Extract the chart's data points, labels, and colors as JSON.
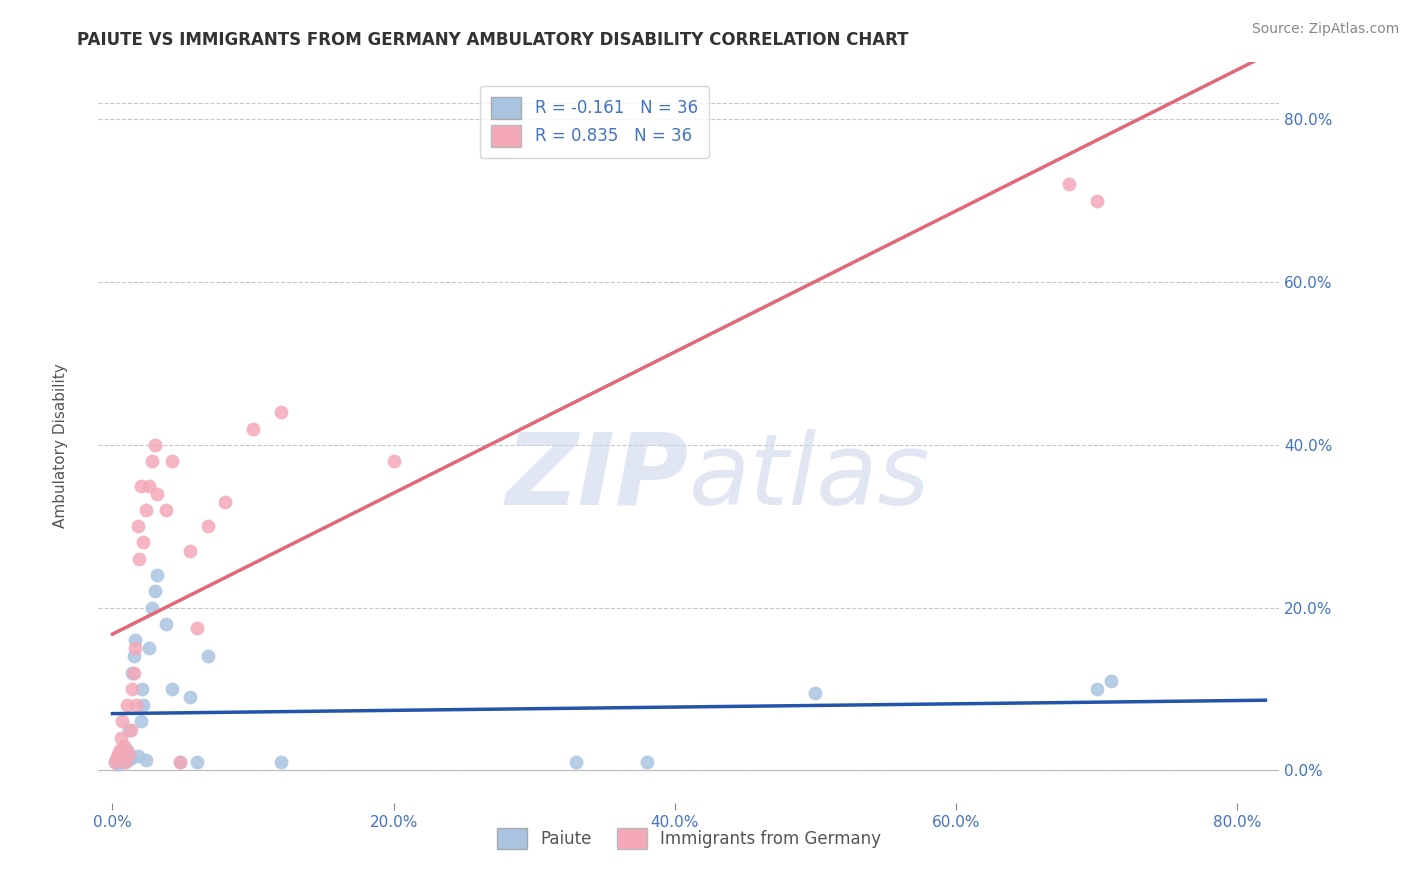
{
  "title": "PAIUTE VS IMMIGRANTS FROM GERMANY AMBULATORY DISABILITY CORRELATION CHART",
  "source": "Source: ZipAtlas.com",
  "ylabel": "Ambulatory Disability",
  "xlim": [
    -0.01,
    0.83
  ],
  "ylim": [
    -0.04,
    0.87
  ],
  "xticks": [
    0.0,
    0.2,
    0.4,
    0.6,
    0.8
  ],
  "yticks": [
    0.0,
    0.2,
    0.4,
    0.6,
    0.8
  ],
  "xtick_labels": [
    "0.0%",
    "20.0%",
    "40.0%",
    "60.0%",
    "80.0%"
  ],
  "ytick_labels": [
    "0.0%",
    "20.0%",
    "40.0%",
    "60.0%",
    "80.0%"
  ],
  "legend_labels": [
    "Paiute",
    "Immigrants from Germany"
  ],
  "paiute_R": -0.161,
  "paiute_N": 36,
  "germany_R": 0.835,
  "germany_N": 36,
  "paiute_color": "#a8c4e0",
  "germany_color": "#f4a8b8",
  "paiute_line_color": "#2255aa",
  "germany_line_color": "#e06878",
  "paiute_x": [
    0.002,
    0.003,
    0.004,
    0.005,
    0.006,
    0.007,
    0.008,
    0.009,
    0.01,
    0.011,
    0.012,
    0.013,
    0.014,
    0.015,
    0.016,
    0.018,
    0.02,
    0.021,
    0.022,
    0.024,
    0.026,
    0.028,
    0.03,
    0.032,
    0.038,
    0.042,
    0.048,
    0.055,
    0.06,
    0.068,
    0.12,
    0.33,
    0.38,
    0.5,
    0.7,
    0.71
  ],
  "paiute_y": [
    0.01,
    0.015,
    0.008,
    0.02,
    0.012,
    0.015,
    0.018,
    0.01,
    0.025,
    0.012,
    0.05,
    0.015,
    0.12,
    0.14,
    0.16,
    0.018,
    0.06,
    0.1,
    0.08,
    0.012,
    0.15,
    0.2,
    0.22,
    0.24,
    0.18,
    0.1,
    0.01,
    0.09,
    0.01,
    0.14,
    0.01,
    0.01,
    0.01,
    0.095,
    0.1,
    0.11
  ],
  "germany_x": [
    0.002,
    0.003,
    0.004,
    0.005,
    0.006,
    0.007,
    0.008,
    0.009,
    0.01,
    0.012,
    0.013,
    0.014,
    0.015,
    0.016,
    0.017,
    0.018,
    0.019,
    0.02,
    0.022,
    0.024,
    0.026,
    0.028,
    0.03,
    0.032,
    0.038,
    0.042,
    0.048,
    0.055,
    0.06,
    0.068,
    0.08,
    0.1,
    0.12,
    0.2,
    0.68,
    0.7
  ],
  "germany_y": [
    0.01,
    0.015,
    0.02,
    0.025,
    0.04,
    0.06,
    0.03,
    0.01,
    0.08,
    0.02,
    0.05,
    0.1,
    0.12,
    0.15,
    0.08,
    0.3,
    0.26,
    0.35,
    0.28,
    0.32,
    0.35,
    0.38,
    0.4,
    0.34,
    0.32,
    0.38,
    0.01,
    0.27,
    0.175,
    0.3,
    0.33,
    0.42,
    0.44,
    0.38,
    0.72,
    0.7
  ],
  "watermark_zip": "ZIP",
  "watermark_atlas": "atlas",
  "background_color": "#ffffff",
  "grid_color": "#c8c8c8",
  "tick_color": "#4472c4",
  "title_color": "#333333",
  "source_color": "#888888",
  "ylabel_color": "#555555"
}
